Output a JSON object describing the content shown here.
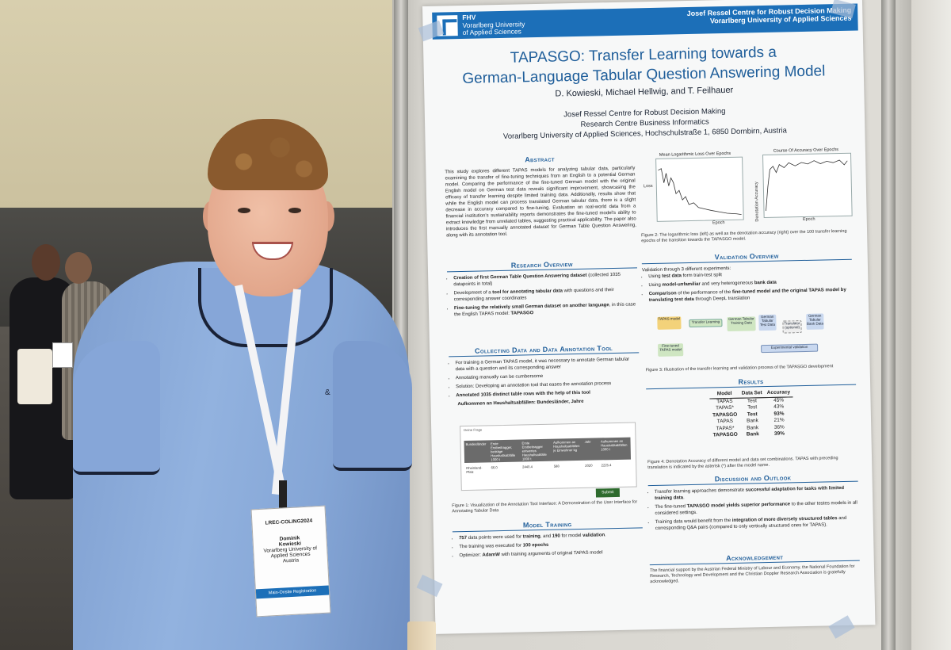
{
  "poster": {
    "fhv": [
      "FHV",
      "Vorarlberg University",
      "of Applied Sciences"
    ],
    "centre": [
      "Josef Ressel Centre for Robust Decision Making",
      "Vorarlberg University of Applied Sciences"
    ],
    "title_line1": "TAPASGO: Transfer Learning towards a",
    "title_line2": "German-Language Tabular Question Answering Model",
    "authors": "D. Kowieski, Michael Hellwig, and T. Feilhauer",
    "affiliation_line1": "Josef Ressel Centre for Robust Decision Making",
    "affiliation_line2": "Research Centre Business Informatics",
    "affiliation_line3": "Vorarlberg University of Applied Sciences, Hochschulstraße 1, 6850 Dornbirn, Austria",
    "abstract_heading": "Abstract",
    "abstract_text": "This study explores different TAPAS models for analyzing tabular data, particularly examining the transfer of fine-tuning techniques from an English to a potential German model. Comparing the performance of the fine-tuned German model with the original English model on German test data reveals significant improvement, showcasing the efficacy of transfer learning despite limited training data. Additionally, results show that while the English model can process translated German tabular data, there is a slight decrease in accuracy compared to fine-tuning. Evaluation on real-world data from a financial institution's sustainability reports demonstrates the fine-tuned model's ability to extract knowledge from unrelated tables, suggesting practical applicability. The paper also introduces the first manually annotated dataset for German Table Question Answering, along with its annotation tool.",
    "plot_left_title": "Mean Logarithmic Loss Over Epochs",
    "plot_right_title": "Course Of Accuracy Over Epochs",
    "plot_xlabel": "Epoch",
    "plot_left_ylabel": "Loss",
    "plot_right_ylabel": "Denotation Accuracy",
    "fig2_caption": "Figure 2: The logarithmic loss (left) as well as the denotation accuracy (right) over the 100 transfer learning epochs of the transition towards the TAPASGO model.",
    "research_heading": "Research Overview",
    "research_items": [
      [
        "Creation of first German Table Question Answering dataset",
        " (collected 1035 datapoints in total)"
      ],
      [
        "Development of a ",
        "tool for annotating tabular data",
        " with questions and their corresponding answer coordinates"
      ],
      [
        "Fine-tuning the relatively small German dataset on another language",
        ", in this case the English TAPAS model: ",
        "TAPASGO"
      ]
    ],
    "collecting_heading": "Collecting Data and Data Annotation Tool",
    "collecting_items": [
      "For training a German TAPAS model, it was necessary to annotate German tabular data with a question and its corresponding answer",
      "Annotating manually can be cumbersome",
      "Solution: Developing an annotation tool that eases the annotation process",
      "Annotated 1035 distinct table rows with the help of this tool"
    ],
    "tool_title": "Aufkommen an Haushaltsabfällen: Bundesländer, Jahre",
    "tool_question_label": "Deine Frage",
    "tool_columns": [
      "Bundesländer",
      "Erste Erstbeitragger, beiträge Haushaltsabfälle 1000 t",
      "Erste Erstbeitragger entwertes Haushaltsabfälle 1000 t",
      "Aufkommen an Haushaltsabfällen je Einwohner kg",
      "Jahr",
      "Aufkommen an Haushaltsabfällen 1000 t"
    ],
    "tool_row": [
      "Rheinland-Pfalz",
      "66.0",
      "2440.4",
      "588",
      "2020",
      "2225.4"
    ],
    "tool_submit": "Submit",
    "fig1_caption": "Figure 1: Visualization of the Annotation Tool Interface: A Demonstration of the User Interface for Annotating Tabular Data",
    "training_heading": "Model Training",
    "training_items": [
      [
        "757",
        " data points were used for ",
        "training",
        ", and ",
        "190",
        " for model ",
        "validation",
        "."
      ],
      [
        "The training was executed for ",
        "100 epochs"
      ],
      [
        "Optimizer: ",
        "AdamW",
        " with training arguments of original TAPAS model"
      ]
    ],
    "validation_heading": "Validation Overview",
    "validation_intro": "Validation through 3 different experiments:",
    "validation_items": [
      [
        "Using ",
        "test data",
        " form train-test split"
      ],
      [
        "Using ",
        "model-unfamiliar",
        " and very heterogeneous ",
        "bank data"
      ],
      [
        "Comparison",
        " of the performance of the ",
        "fine-tuned model and the original TAPAS model by translating test data",
        " through DeepL translation"
      ]
    ],
    "diagram_labels": {
      "tapas": "TAPAS model",
      "transfer": "Transfer Learning",
      "german_training": "German Tabular Training Data",
      "german_test": "German Tabular Test Data",
      "translator": "Translator (optional)",
      "german_bank": "German Tabular Bank Data",
      "finetuned": "Fine-tuned TAPAS model",
      "experimental": "Experimental validation"
    },
    "fig3_caption": "Figure 3: Illustration of the transfer learning and validation process of the TAPASGO development",
    "results_heading": "Results",
    "results_table": {
      "headers": [
        "Model",
        "Data Set",
        "Accuracy"
      ],
      "rows": [
        [
          "TAPAS",
          "Test",
          "45%",
          false
        ],
        [
          "TAPAS*",
          "Test",
          "43%",
          false
        ],
        [
          "TAPASGO",
          "Test",
          "93%",
          true
        ],
        [
          "TAPAS",
          "Bank",
          "21%",
          false
        ],
        [
          "TAPAS*",
          "Bank",
          "36%",
          false
        ],
        [
          "TAPASGO",
          "Bank",
          "39%",
          true
        ]
      ]
    },
    "fig4_caption": "Figure 4: Denotation Accuracy of different model and data set combinations. TAPAS with preceding translation is indicated by the asterisk (*) after the model name.",
    "discussion_heading": "Discussion and Outlook",
    "discussion_items": [
      [
        "Transfer learning approaches demonstrate ",
        "successful adaptation for tasks with limited training data",
        "."
      ],
      [
        "The fine-tuned ",
        "TAPASGO model yields superior performance",
        " to the other testes models in all considered settings."
      ],
      [
        "Training data would benefit from the ",
        "integration of more diversely structured tables",
        " and corresponding Q&A pairs (compared to only vertically structured ones for TAPAS)."
      ]
    ],
    "ack_heading": "Acknowledgement",
    "ack_text": "The financial support by the Austrian Federal Ministry of Labour and Economy, the National Foundation for Research, Technology and Development and the Christian Doppler Research Association is gratefully acknowledged."
  },
  "badge": {
    "event": "LREC-COLING2024",
    "name_line1": "Dominik",
    "name_line2": "Kowieski",
    "org_line1": "Vorarlberg University of",
    "org_line2": "Applied Sciences",
    "org_line3": "Austria",
    "footer": "Main-Onsite Registration"
  },
  "shirt_logo": "&",
  "colors": {
    "poster_blue": "#1c6fb8",
    "heading_blue": "#1f5e9a",
    "shirt": "#8aaadb"
  }
}
